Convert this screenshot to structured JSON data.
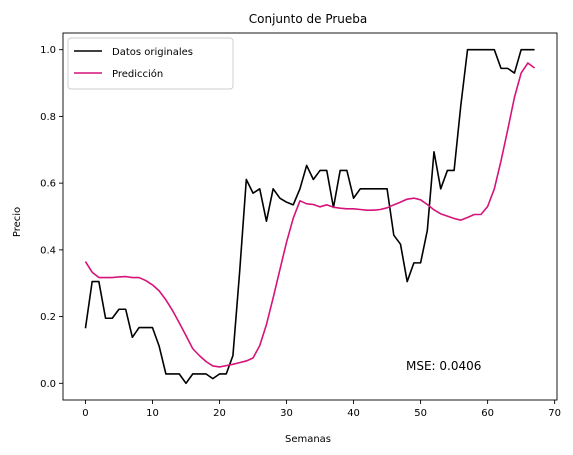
{
  "chart_data": {
    "type": "line",
    "title": "Conjunto de Prueba",
    "xlabel": "Semanas",
    "ylabel": "Precio",
    "xlim": [
      -3.35,
      70.35
    ],
    "ylim": [
      -0.05,
      1.05
    ],
    "xticks": [
      0,
      10,
      20,
      30,
      40,
      50,
      60,
      70
    ],
    "yticks": [
      0.0,
      0.2,
      0.4,
      0.6,
      0.8,
      1.0
    ],
    "xtick_labels": [
      "0",
      "10",
      "20",
      "30",
      "40",
      "50",
      "60",
      "70"
    ],
    "ytick_labels": [
      "0.0",
      "0.2",
      "0.4",
      "0.6",
      "0.8",
      "1.0"
    ],
    "grid": false,
    "legend_position": "top-left",
    "annotation": "MSE: 0.0406",
    "series": [
      {
        "name": "Datos originales",
        "color": "#000000",
        "x": [
          0,
          1,
          2,
          3,
          4,
          5,
          6,
          7,
          8,
          9,
          10,
          11,
          12,
          13,
          14,
          15,
          16,
          17,
          18,
          19,
          20,
          21,
          22,
          23,
          24,
          25,
          26,
          27,
          28,
          29,
          30,
          31,
          32,
          33,
          34,
          35,
          36,
          37,
          38,
          39,
          40,
          41,
          42,
          43,
          44,
          45,
          46,
          47,
          48,
          49,
          50,
          51,
          52,
          53,
          54,
          55,
          56,
          57,
          58,
          59,
          60,
          61,
          62,
          63,
          64,
          65,
          66,
          67
        ],
        "y": [
          0.165,
          0.305,
          0.305,
          0.195,
          0.195,
          0.222,
          0.222,
          0.138,
          0.167,
          0.167,
          0.167,
          0.111,
          0.028,
          0.028,
          0.028,
          0.0,
          0.028,
          0.028,
          0.028,
          0.014,
          0.028,
          0.028,
          0.083,
          0.333,
          0.611,
          0.57,
          0.583,
          0.486,
          0.583,
          0.555,
          0.543,
          0.535,
          0.583,
          0.653,
          0.611,
          0.638,
          0.638,
          0.527,
          0.638,
          0.638,
          0.555,
          0.583,
          0.583,
          0.583,
          0.583,
          0.583,
          0.444,
          0.417,
          0.305,
          0.361,
          0.361,
          0.458,
          0.694,
          0.583,
          0.638,
          0.638,
          0.833,
          1.0,
          1.0,
          1.0,
          1.0,
          1.0,
          0.944,
          0.944,
          0.93,
          1.0,
          1.0,
          1.0
        ]
      },
      {
        "name": "Predicción",
        "color": "#d6137a",
        "x": [
          0,
          1,
          2,
          3,
          4,
          5,
          6,
          7,
          8,
          9,
          10,
          11,
          12,
          13,
          14,
          15,
          16,
          17,
          18,
          19,
          20,
          21,
          22,
          23,
          24,
          25,
          26,
          27,
          28,
          29,
          30,
          31,
          32,
          33,
          34,
          35,
          36,
          37,
          38,
          39,
          40,
          41,
          42,
          43,
          44,
          45,
          46,
          47,
          48,
          49,
          50,
          51,
          52,
          53,
          54,
          55,
          56,
          57,
          58,
          59,
          60,
          61,
          62,
          63,
          64,
          65,
          66,
          67
        ],
        "y": [
          0.365,
          0.333,
          0.317,
          0.317,
          0.317,
          0.319,
          0.32,
          0.317,
          0.317,
          0.308,
          0.295,
          0.277,
          0.25,
          0.218,
          0.181,
          0.143,
          0.104,
          0.083,
          0.065,
          0.052,
          0.049,
          0.053,
          0.057,
          0.062,
          0.067,
          0.076,
          0.113,
          0.176,
          0.256,
          0.34,
          0.423,
          0.495,
          0.547,
          0.538,
          0.536,
          0.529,
          0.535,
          0.528,
          0.525,
          0.523,
          0.523,
          0.521,
          0.519,
          0.519,
          0.521,
          0.526,
          0.535,
          0.543,
          0.552,
          0.555,
          0.55,
          0.536,
          0.52,
          0.508,
          0.501,
          0.494,
          0.489,
          0.497,
          0.506,
          0.506,
          0.53,
          0.583,
          0.667,
          0.76,
          0.857,
          0.93,
          0.96,
          0.945
        ]
      }
    ]
  }
}
